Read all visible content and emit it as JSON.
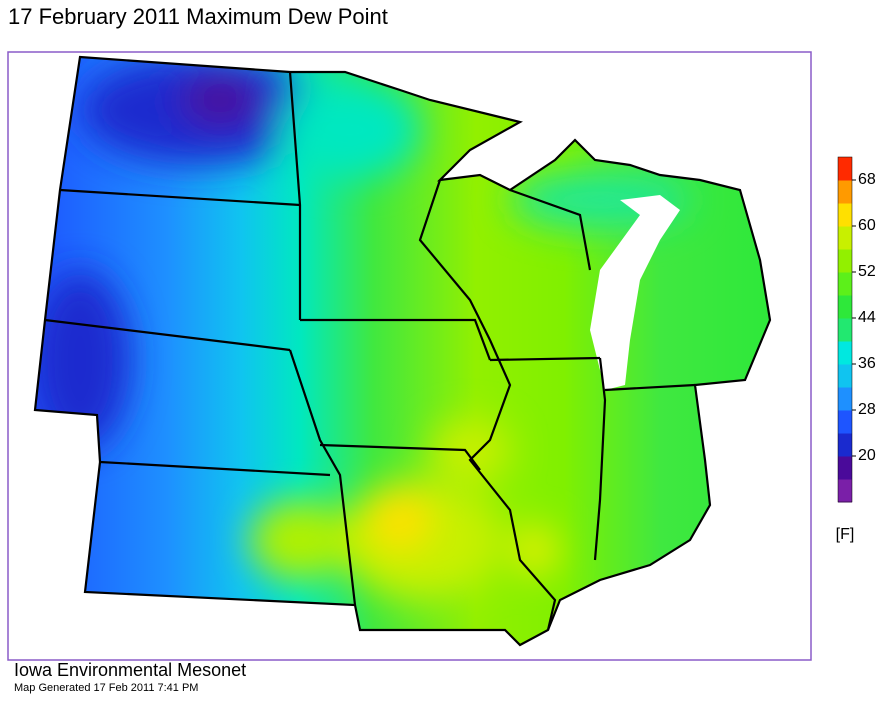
{
  "header": {
    "title": "17 February 2011 Maximum Dew Point"
  },
  "colorbar": {
    "lim": [
      12,
      72
    ],
    "ticks": [
      20,
      28,
      36,
      44,
      52,
      60,
      68
    ],
    "unit": "[F]",
    "colors": [
      "#7a1fa8",
      "#4a0a9a",
      "#1a2acf",
      "#1e55ff",
      "#1e90ff",
      "#10c4f0",
      "#00e8e0",
      "#22e870",
      "#2ee83a",
      "#5cf01a",
      "#92f000",
      "#c8f000",
      "#ffe000",
      "#ff9a00",
      "#ff2a00"
    ]
  },
  "footer": {
    "source": "Iowa Environmental Mesonet",
    "generated": "Map Generated 17 Feb 2011 7:41 PM"
  }
}
